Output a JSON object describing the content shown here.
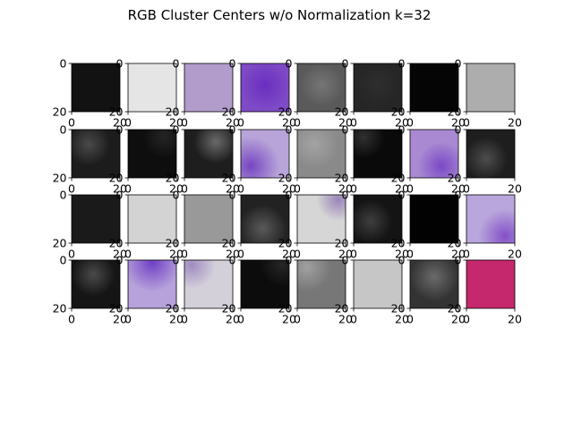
{
  "figure": {
    "title": "RGB Cluster Centers w/o Normalization k=32"
  },
  "chart_data": {
    "type": "heatmap",
    "title": "RGB Cluster Centers w/o Normalization k=32",
    "layout": {
      "rows": 4,
      "cols": 8
    },
    "image_size": [
      20,
      20
    ],
    "xlim": [
      0,
      20
    ],
    "ylim": [
      20,
      0
    ],
    "x_tick_labels": [
      "0",
      "20"
    ],
    "y_tick_labels": [
      "0",
      "20"
    ],
    "x_tick_values": [
      0,
      20
    ],
    "y_tick_values": [
      0,
      20
    ],
    "cells": [
      {
        "row": 0,
        "col": 0,
        "base": "#121212",
        "blob": null
      },
      {
        "row": 0,
        "col": 1,
        "base": "#e5e5e5",
        "blob": null
      },
      {
        "row": 0,
        "col": 2,
        "base": "#b29ccc",
        "blob": null
      },
      {
        "row": 0,
        "col": 3,
        "base": "#7e4ac6",
        "blob": {
          "color": "#6a2ec0",
          "cx": 0.5,
          "cy": 0.45,
          "r": 0.5
        }
      },
      {
        "row": 0,
        "col": 4,
        "base": "#5a5a5a",
        "blob": {
          "color": "#767676",
          "cx": 0.5,
          "cy": 0.45,
          "r": 0.45
        }
      },
      {
        "row": 0,
        "col": 5,
        "base": "#262626",
        "blob": {
          "color": "#2e2e2e",
          "cx": 0.5,
          "cy": 0.45,
          "r": 0.45
        }
      },
      {
        "row": 0,
        "col": 6,
        "base": "#050505",
        "blob": null
      },
      {
        "row": 0,
        "col": 7,
        "base": "#adadad",
        "blob": null
      },
      {
        "row": 1,
        "col": 0,
        "base": "#1c1c1c",
        "blob": {
          "color": "#4a4a4a",
          "cx": 0.35,
          "cy": 0.3,
          "r": 0.45
        }
      },
      {
        "row": 1,
        "col": 1,
        "base": "#0e0e0e",
        "blob": {
          "color": "#242424",
          "cx": 0.75,
          "cy": 0.15,
          "r": 0.45
        }
      },
      {
        "row": 1,
        "col": 2,
        "base": "#1e1e1e",
        "blob": {
          "color": "#6a6a6a",
          "cx": 0.65,
          "cy": 0.25,
          "r": 0.45
        }
      },
      {
        "row": 1,
        "col": 3,
        "base": "#b8a4d8",
        "blob": {
          "color": "#7646c2",
          "cx": 0.2,
          "cy": 0.75,
          "r": 0.6
        }
      },
      {
        "row": 1,
        "col": 4,
        "base": "#8a8a8a",
        "blob": {
          "color": "#a3a3a3",
          "cx": 0.35,
          "cy": 0.3,
          "r": 0.5
        }
      },
      {
        "row": 1,
        "col": 5,
        "base": "#0a0a0a",
        "blob": {
          "color": "#303030",
          "cx": 0.2,
          "cy": 0.15,
          "r": 0.45
        }
      },
      {
        "row": 1,
        "col": 6,
        "base": "#a98ad2",
        "blob": {
          "color": "#7a48c6",
          "cx": 0.65,
          "cy": 0.75,
          "r": 0.5
        }
      },
      {
        "row": 1,
        "col": 7,
        "base": "#1e1e1e",
        "blob": {
          "color": "#4d4d4d",
          "cx": 0.4,
          "cy": 0.6,
          "r": 0.45
        }
      },
      {
        "row": 2,
        "col": 0,
        "base": "#1a1a1a",
        "blob": null
      },
      {
        "row": 2,
        "col": 1,
        "base": "#d3d3d3",
        "blob": null
      },
      {
        "row": 2,
        "col": 2,
        "base": "#999999",
        "blob": null
      },
      {
        "row": 2,
        "col": 3,
        "base": "#222222",
        "blob": {
          "color": "#5a5a5a",
          "cx": 0.45,
          "cy": 0.7,
          "r": 0.5
        }
      },
      {
        "row": 2,
        "col": 4,
        "base": "#d6d6d6",
        "blob": {
          "color": "#9a84b8",
          "cx": 0.85,
          "cy": 0.1,
          "r": 0.45
        }
      },
      {
        "row": 2,
        "col": 5,
        "base": "#141414",
        "blob": {
          "color": "#3e3e3e",
          "cx": 0.35,
          "cy": 0.55,
          "r": 0.45
        }
      },
      {
        "row": 2,
        "col": 6,
        "base": "#020202",
        "blob": null
      },
      {
        "row": 2,
        "col": 7,
        "base": "#b9a6dc",
        "blob": {
          "color": "#8450c8",
          "cx": 0.8,
          "cy": 0.85,
          "r": 0.55
        }
      },
      {
        "row": 3,
        "col": 0,
        "base": "#151515",
        "blob": {
          "color": "#4a4a4a",
          "cx": 0.45,
          "cy": 0.3,
          "r": 0.45
        }
      },
      {
        "row": 3,
        "col": 1,
        "base": "#b7a2dc",
        "blob": {
          "color": "#7040c4",
          "cx": 0.5,
          "cy": 0.05,
          "r": 0.6
        }
      },
      {
        "row": 3,
        "col": 2,
        "base": "#d4d0da",
        "blob": {
          "color": "#a08cc0",
          "cx": 0.15,
          "cy": 0.1,
          "r": 0.5
        }
      },
      {
        "row": 3,
        "col": 3,
        "base": "#0c0c0c",
        "blob": {
          "color": "#262626",
          "cx": 0.85,
          "cy": 0.1,
          "r": 0.45
        }
      },
      {
        "row": 3,
        "col": 4,
        "base": "#777777",
        "blob": {
          "color": "#a0a0a0",
          "cx": 0.2,
          "cy": 0.15,
          "r": 0.5
        }
      },
      {
        "row": 3,
        "col": 5,
        "base": "#c6c6c6",
        "blob": null
      },
      {
        "row": 3,
        "col": 6,
        "base": "#333333",
        "blob": {
          "color": "#6a6a6a",
          "cx": 0.5,
          "cy": 0.35,
          "r": 0.5
        }
      },
      {
        "row": 3,
        "col": 7,
        "base": "#c5286c",
        "blob": null
      }
    ]
  }
}
